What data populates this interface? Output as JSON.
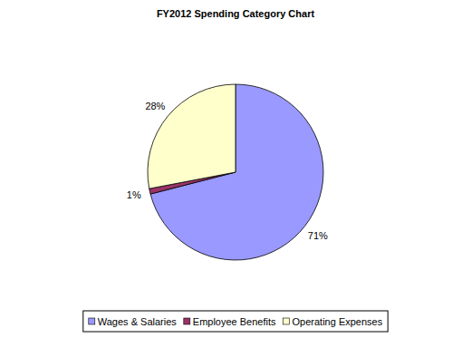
{
  "chart_data": {
    "type": "pie",
    "title": "FY2012 Spending Category Chart",
    "categories": [
      "Wages & Salaries",
      "Employee Benefits",
      "Operating Expenses"
    ],
    "values": [
      71,
      1,
      28
    ],
    "value_labels": [
      "71%",
      "1%",
      "28%"
    ],
    "colors": [
      "#9999ff",
      "#993366",
      "#ffffcc"
    ],
    "data_labels": true,
    "legend": "bottom"
  }
}
